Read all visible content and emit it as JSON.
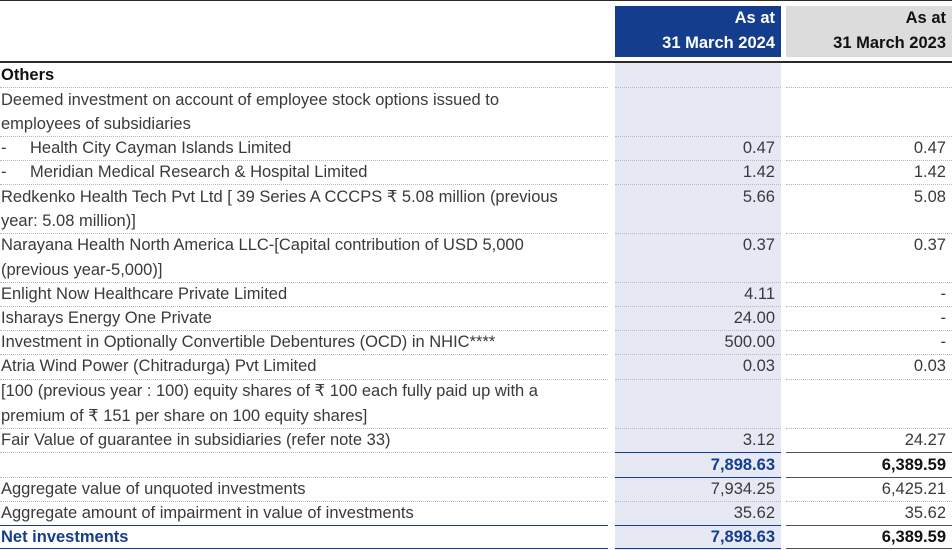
{
  "header": {
    "col_2024_line1": "As at",
    "col_2024_line2": "31 March 2024",
    "col_2023_line1": "As at",
    "col_2023_line2": "31 March 2023"
  },
  "section_title": "Others",
  "rows": [
    {
      "label1": "Deemed investment on account of employee stock options issued to",
      "label2": "employees of subsidiaries",
      "v2024": "",
      "v2023": ""
    },
    {
      "dash": "-",
      "label1": "Health City Cayman Islands Limited",
      "v2024": "0.47",
      "v2023": "0.47"
    },
    {
      "dash": "-",
      "label1": "Meridian Medical Research & Hospital Limited",
      "v2024": "1.42",
      "v2023": "1.42"
    },
    {
      "label1": "Redkenko Health Tech Pvt Ltd [ 39 Series A CCCPS ₹ 5.08 million (previous",
      "label2": "year: 5.08 million)]",
      "v2024": "5.66",
      "v2023": "5.08"
    },
    {
      "label1": "Narayana Health North America LLC-[Capital contribution of USD 5,000",
      "label2": "(previous year-5,000)]",
      "v2024": "0.37",
      "v2023": "0.37"
    },
    {
      "label1": "Enlight Now Healthcare Private Limited",
      "v2024": "4.11",
      "v2023": "-"
    },
    {
      "label1": "Isharays Energy One Private",
      "v2024": "24.00",
      "v2023": "-"
    },
    {
      "label1": "Investment in Optionally Convertible Debentures (OCD) in NHIC****",
      "v2024": "500.00",
      "v2023": "-"
    },
    {
      "label1": "Atria Wind Power (Chitradurga) Pvt Limited",
      "v2024": "0.03",
      "v2023": "0.03"
    },
    {
      "label1": "[100 (previous year : 100) equity shares of ₹ 100 each fully paid up with a",
      "label2": "premium of ₹ 151 per share on 100 equity shares]",
      "v2024": "",
      "v2023": ""
    },
    {
      "label1": "Fair Value of guarantee in subsidiaries (refer note 33)",
      "v2024": "3.12",
      "v2023": "24.27"
    }
  ],
  "subtotal": {
    "v2024": "7,898.63",
    "v2023": "6,389.59"
  },
  "aggregate_unquoted": {
    "label": "Aggregate value of unquoted investments",
    "v2024": "7,934.25",
    "v2023": "6,425.21"
  },
  "aggregate_impairment": {
    "label": "Aggregate amount of impairment in value of investments",
    "v2024": "35.62",
    "v2023": "35.62"
  },
  "net": {
    "label": "Net investments",
    "v2024": "7,898.63",
    "v2023": "6,389.59"
  }
}
